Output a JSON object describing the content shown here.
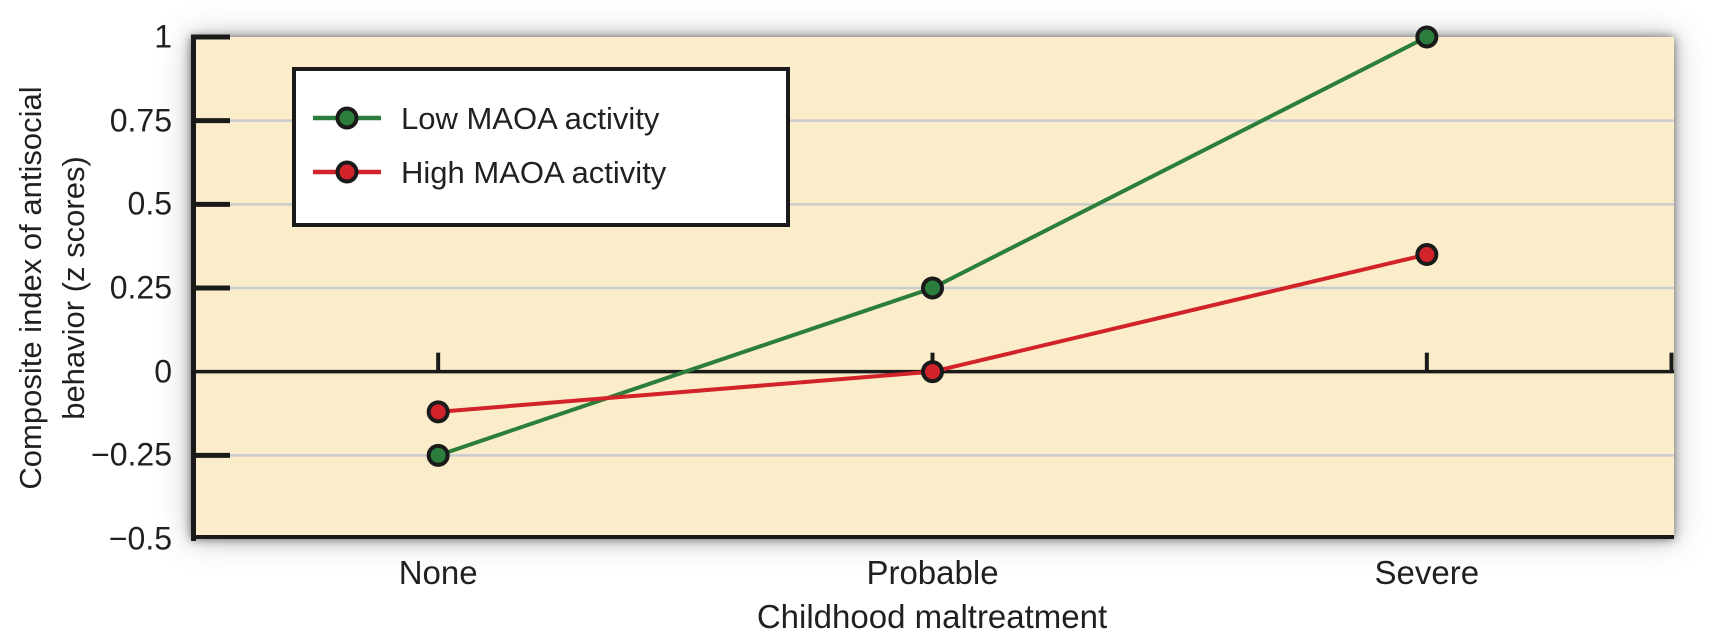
{
  "chart_data": {
    "type": "line",
    "title": "",
    "xlabel": "Childhood maltreatment",
    "ylabel": "Composite index of antisocial behavior (z scores)",
    "ylabel_lines": [
      "Composite index of antisocial",
      "behavior (z scores)"
    ],
    "categories": [
      "None",
      "Probable",
      "Severe"
    ],
    "series": [
      {
        "name": "Low MAOA activity",
        "color": "#2B7E3B",
        "values": [
          -0.25,
          0.25,
          1.0
        ]
      },
      {
        "name": "High MAOA activity",
        "color": "#D2222A",
        "values": [
          -0.12,
          0.0,
          0.35
        ]
      }
    ],
    "ylim": [
      -0.5,
      1.0
    ],
    "yticks": [
      {
        "value": 1,
        "label": "1"
      },
      {
        "value": 0.75,
        "label": "0.75"
      },
      {
        "value": 0.5,
        "label": "0.5"
      },
      {
        "value": 0.25,
        "label": "0.25"
      },
      {
        "value": 0,
        "label": "0"
      },
      {
        "value": -0.25,
        "label": "−0.25"
      },
      {
        "value": -0.5,
        "label": "−0.5"
      }
    ],
    "gridlines": [
      0.75,
      0.5,
      0.25,
      -0.25
    ],
    "grid": true,
    "legend_position": "top-left",
    "colors": {
      "plot_bg": "#FBEDC9",
      "gridline": "#C9CCCE",
      "axis": "#1A1A1A",
      "text": "#231F20",
      "legend_bg": "#FFFFFF"
    }
  }
}
